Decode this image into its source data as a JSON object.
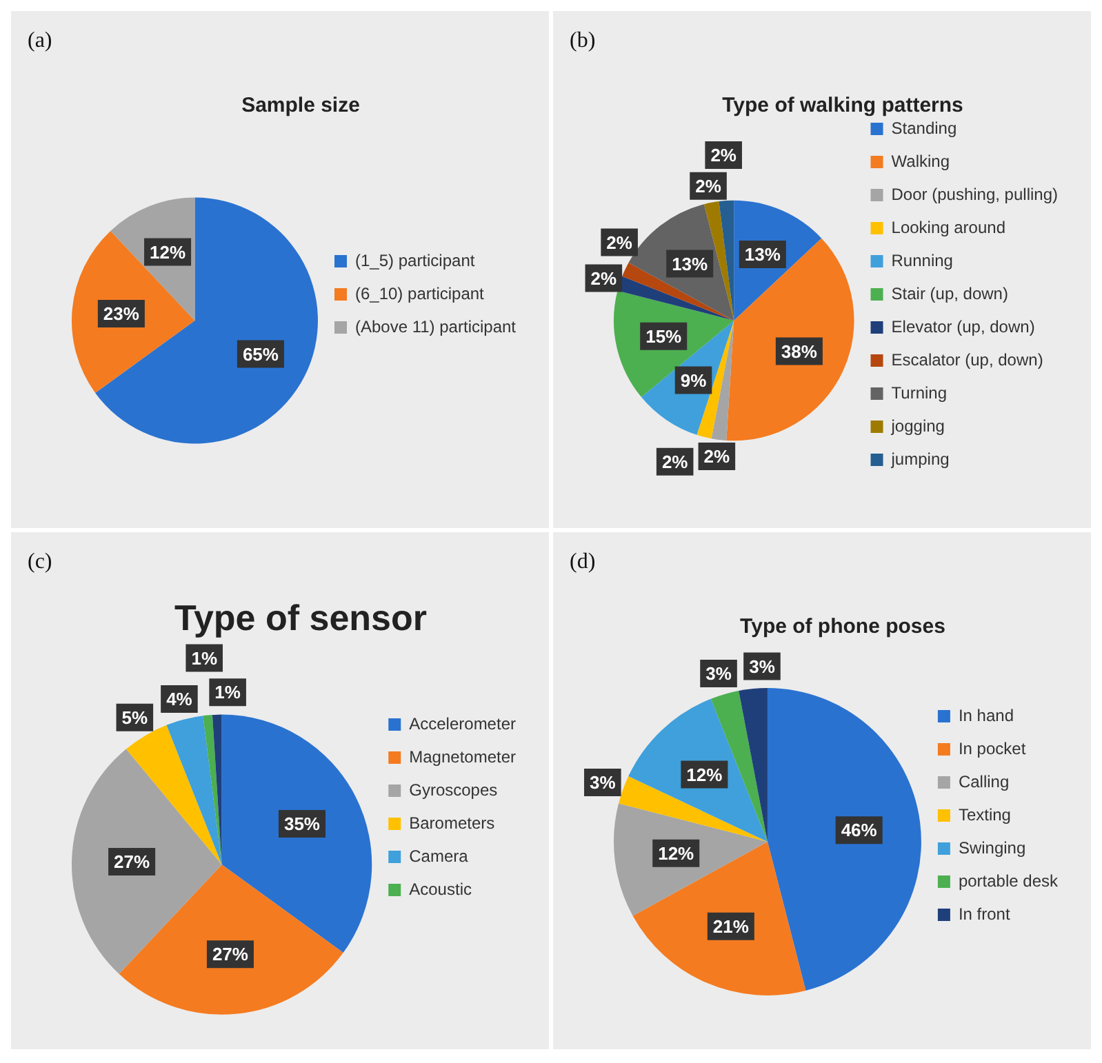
{
  "chart_data": [
    {
      "type": "pie",
      "title": "Sample size",
      "annotations": [
        "(a)"
      ],
      "categories": [
        "(1_5) participant",
        "(6_10) participant",
        "(Above 11) participant"
      ],
      "values": [
        65,
        23,
        12
      ],
      "value_labels": [
        "65%",
        "23%",
        "12%"
      ],
      "colors": [
        "#2a72d0",
        "#f47b20",
        "#a5a5a5"
      ],
      "legend": "right"
    },
    {
      "type": "pie",
      "title": "Type of walking patterns",
      "annotations": [
        "(b)"
      ],
      "categories": [
        "Standing",
        "Walking",
        "Door (pushing, pulling)",
        "Looking around",
        "Running",
        "Stair (up, down)",
        "Elevator (up, down)",
        "Escalator (up, down)",
        "Turning",
        "jogging",
        "jumping"
      ],
      "values": [
        13,
        38,
        2,
        2,
        9,
        15,
        2,
        2,
        13,
        2,
        2
      ],
      "value_labels": [
        "13%",
        "38%",
        "2%",
        "2%",
        "9%",
        "15%",
        "2%",
        "2%",
        "13%",
        "2%",
        "2%"
      ],
      "colors": [
        "#2a72d0",
        "#f47b20",
        "#a5a5a5",
        "#ffc000",
        "#3fa0dc",
        "#4caf50",
        "#1f3f7a",
        "#b5470f",
        "#636363",
        "#9e7b00",
        "#255e91"
      ],
      "legend": "right"
    },
    {
      "type": "pie",
      "title": "Type of sensor",
      "annotations": [
        "(c)"
      ],
      "categories": [
        "Accelerometer",
        "Magnetometer",
        "Gyroscopes",
        "Barometers",
        "Camera",
        "Acoustic",
        null
      ],
      "values": [
        35,
        27,
        27,
        5,
        4,
        1,
        1
      ],
      "value_labels": [
        "35%",
        "27%",
        "27%",
        "5%",
        "4%",
        "1%",
        "1%"
      ],
      "colors": [
        "#2a72d0",
        "#f47b20",
        "#a5a5a5",
        "#ffc000",
        "#3fa0dc",
        "#4caf50",
        "#1f3f7a"
      ],
      "legend": "right"
    },
    {
      "type": "pie",
      "title": "Type of phone poses",
      "annotations": [
        "(d)"
      ],
      "categories": [
        "In hand",
        "In pocket",
        "Calling",
        "Texting",
        "Swinging",
        "portable desk",
        "In front"
      ],
      "values": [
        46,
        21,
        12,
        3,
        12,
        3,
        3
      ],
      "value_labels": [
        "46%",
        "21%",
        "12%",
        "3%",
        "12%",
        "3%",
        "3%"
      ],
      "colors": [
        "#2a72d0",
        "#f47b20",
        "#a5a5a5",
        "#ffc000",
        "#3fa0dc",
        "#4caf50",
        "#1f3f7a"
      ],
      "legend": "right"
    }
  ]
}
